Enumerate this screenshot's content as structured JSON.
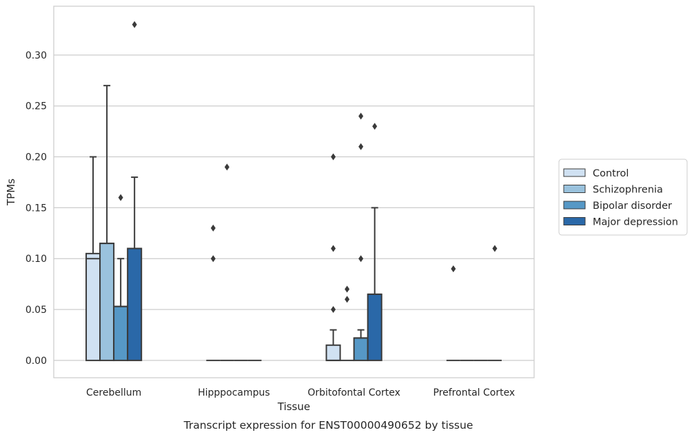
{
  "caption": "Transcript expression for ENST00000490652 by tissue",
  "chart_data": {
    "type": "box",
    "xlabel": "Tissue",
    "ylabel": "TPMs",
    "ylim": [
      -0.017,
      0.348
    ],
    "yticks": [
      0.0,
      0.05,
      0.1,
      0.15,
      0.2,
      0.25,
      0.3
    ],
    "ytick_labels": [
      "0.00",
      "0.05",
      "0.10",
      "0.15",
      "0.20",
      "0.25",
      "0.30"
    ],
    "grid": "horizontal",
    "legend_position": "right",
    "categories": [
      "Cerebellum",
      "Hipppocampus",
      "Orbitofontal Cortex",
      "Prefrontal Cortex"
    ],
    "series": [
      {
        "name": "Control",
        "color": "#d0e1f2",
        "boxes": [
          {
            "q1": 0.0,
            "median": 0.1,
            "q3": 0.105,
            "whisker_low": 0.0,
            "whisker_high": 0.2,
            "outliers": []
          },
          {
            "q1": 0.0,
            "median": 0.0,
            "q3": 0.0,
            "whisker_low": 0.0,
            "whisker_high": 0.0,
            "outliers": [
              0.13,
              0.1
            ]
          },
          {
            "q1": 0.0,
            "median": 0.0,
            "q3": 0.015,
            "whisker_low": 0.0,
            "whisker_high": 0.03,
            "outliers": [
              0.2,
              0.11,
              0.05
            ]
          },
          {
            "q1": 0.0,
            "median": 0.0,
            "q3": 0.0,
            "whisker_low": 0.0,
            "whisker_high": 0.0,
            "outliers": [
              0.09
            ]
          }
        ]
      },
      {
        "name": "Schizophrenia",
        "color": "#9ac2dd",
        "boxes": [
          {
            "q1": 0.0,
            "median": 0.115,
            "q3": 0.115,
            "whisker_low": 0.0,
            "whisker_high": 0.27,
            "outliers": []
          },
          {
            "q1": 0.0,
            "median": 0.0,
            "q3": 0.0,
            "whisker_low": 0.0,
            "whisker_high": 0.0,
            "outliers": [
              0.19
            ]
          },
          {
            "q1": 0.0,
            "median": 0.0,
            "q3": 0.0,
            "whisker_low": 0.0,
            "whisker_high": 0.0,
            "outliers": [
              0.07,
              0.06
            ]
          },
          {
            "q1": 0.0,
            "median": 0.0,
            "q3": 0.0,
            "whisker_low": 0.0,
            "whisker_high": 0.0,
            "outliers": []
          }
        ]
      },
      {
        "name": "Bipolar disorder",
        "color": "#5698c6",
        "boxes": [
          {
            "q1": 0.0,
            "median": 0.053,
            "q3": 0.053,
            "whisker_low": 0.0,
            "whisker_high": 0.1,
            "outliers": [
              0.16
            ]
          },
          {
            "q1": 0.0,
            "median": 0.0,
            "q3": 0.0,
            "whisker_low": 0.0,
            "whisker_high": 0.0,
            "outliers": []
          },
          {
            "q1": 0.0,
            "median": 0.022,
            "q3": 0.022,
            "whisker_low": 0.0,
            "whisker_high": 0.03,
            "outliers": [
              0.24,
              0.21,
              0.1
            ]
          },
          {
            "q1": 0.0,
            "median": 0.0,
            "q3": 0.0,
            "whisker_low": 0.0,
            "whisker_high": 0.0,
            "outliers": []
          }
        ]
      },
      {
        "name": "Major depression",
        "color": "#2a68a8",
        "boxes": [
          {
            "q1": 0.0,
            "median": 0.11,
            "q3": 0.11,
            "whisker_low": 0.0,
            "whisker_high": 0.18,
            "outliers": [
              0.33
            ]
          },
          {
            "q1": 0.0,
            "median": 0.0,
            "q3": 0.0,
            "whisker_low": 0.0,
            "whisker_high": 0.0,
            "outliers": []
          },
          {
            "q1": 0.0,
            "median": 0.065,
            "q3": 0.065,
            "whisker_low": 0.0,
            "whisker_high": 0.15,
            "outliers": [
              0.23
            ]
          },
          {
            "q1": 0.0,
            "median": 0.0,
            "q3": 0.0,
            "whisker_low": 0.0,
            "whisker_high": 0.0,
            "outliers": [
              0.11
            ]
          }
        ]
      }
    ]
  }
}
